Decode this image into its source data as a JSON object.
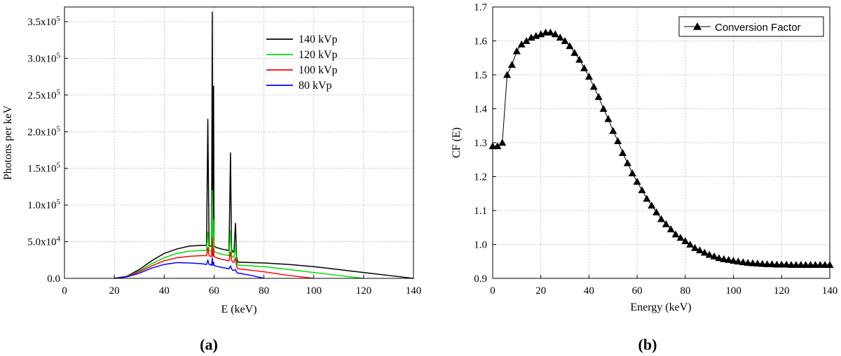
{
  "chart_data": [
    {
      "panel_label": "(a)",
      "type": "line",
      "xlabel": "E (keV)",
      "ylabel": "Photons per keV",
      "xlim": [
        0,
        140
      ],
      "ylim": [
        0,
        370000
      ],
      "x_ticks": [
        0,
        20,
        40,
        60,
        80,
        100,
        120,
        140
      ],
      "y_ticks": [
        {
          "value": 0,
          "mantissa": "0.0",
          "exp": ""
        },
        {
          "value": 50000,
          "mantissa": "5.0x10",
          "exp": "4"
        },
        {
          "value": 100000,
          "mantissa": "1.0x10",
          "exp": "5"
        },
        {
          "value": 150000,
          "mantissa": "1.5x10",
          "exp": "5"
        },
        {
          "value": 200000,
          "mantissa": "2.0x10",
          "exp": "5"
        },
        {
          "value": 250000,
          "mantissa": "2.5x10",
          "exp": "5"
        },
        {
          "value": 300000,
          "mantissa": "3.0x10",
          "exp": "5"
        },
        {
          "value": 350000,
          "mantissa": "3.5x10",
          "exp": "5"
        }
      ],
      "grid": true,
      "legend_position": "top-right",
      "series": [
        {
          "name": "140 kVp",
          "color": "#000000",
          "x": [
            20,
            25,
            30,
            35,
            40,
            45,
            50,
            55,
            57,
            57.5,
            58,
            58.5,
            59,
            59.3,
            59.5,
            59.8,
            60,
            60.5,
            61,
            63,
            66,
            66.6,
            67,
            67.5,
            68,
            68.6,
            69,
            69.5,
            70,
            80,
            90,
            100,
            110,
            120,
            130,
            140
          ],
          "y": [
            0,
            3000,
            12000,
            24000,
            34000,
            40000,
            44000,
            45000,
            45000,
            217000,
            45000,
            44000,
            44000,
            363000,
            44000,
            262000,
            44000,
            43000,
            42000,
            40000,
            38000,
            171000,
            40000,
            36000,
            36000,
            75000,
            30000,
            22000,
            22000,
            21000,
            19000,
            16000,
            12000,
            8000,
            4000,
            0
          ]
        },
        {
          "name": "120 kVp",
          "color": "#00dd00",
          "x": [
            20,
            25,
            30,
            35,
            40,
            45,
            50,
            55,
            57,
            57.5,
            58,
            58.5,
            59,
            59.3,
            59.5,
            59.8,
            60,
            60.5,
            61,
            63,
            66,
            66.6,
            67,
            67.5,
            68,
            68.6,
            69,
            69.5,
            70,
            80,
            90,
            100,
            110,
            120
          ],
          "y": [
            0,
            3000,
            10000,
            20000,
            28000,
            34000,
            37000,
            38000,
            38000,
            63000,
            38000,
            37000,
            37000,
            120000,
            37000,
            80000,
            37000,
            36000,
            35000,
            33000,
            31000,
            65000,
            32000,
            29000,
            29000,
            45000,
            24000,
            18000,
            18000,
            16000,
            12000,
            8000,
            4000,
            0
          ]
        },
        {
          "name": "100 kVp",
          "color": "#ff0000",
          "x": [
            20,
            25,
            30,
            35,
            40,
            45,
            50,
            55,
            57,
            57.5,
            58,
            58.5,
            59,
            59.3,
            59.5,
            59.8,
            60,
            60.5,
            61,
            63,
            66,
            66.6,
            67,
            67.5,
            68,
            68.6,
            69,
            69.5,
            70,
            80,
            90,
            100
          ],
          "y": [
            0,
            2500,
            9000,
            17000,
            24000,
            28000,
            30000,
            31000,
            31000,
            42000,
            31000,
            30000,
            30000,
            55000,
            30000,
            40000,
            30000,
            29000,
            28000,
            26000,
            24000,
            36000,
            25000,
            22000,
            22000,
            28000,
            17000,
            13000,
            13000,
            9000,
            4000,
            0
          ]
        },
        {
          "name": "80 kVp",
          "color": "#0000ff",
          "x": [
            20,
            25,
            30,
            35,
            40,
            45,
            50,
            55,
            57,
            57.5,
            58,
            58.5,
            59,
            59.3,
            59.5,
            59.8,
            60,
            60.5,
            61,
            63,
            66,
            66.6,
            67,
            67.5,
            68,
            68.6,
            69,
            69.5,
            70,
            75,
            80
          ],
          "y": [
            0,
            2000,
            7000,
            14000,
            19000,
            21500,
            21000,
            20000,
            19000,
            25000,
            19000,
            18500,
            18000,
            28000,
            18000,
            22000,
            17500,
            17000,
            16500,
            15000,
            13000,
            17000,
            13000,
            11000,
            11000,
            12000,
            9000,
            7000,
            7000,
            4000,
            0
          ]
        }
      ]
    },
    {
      "panel_label": "(b)",
      "type": "scatter",
      "xlabel": "Energy (keV)",
      "ylabel": "CF (E)",
      "xlim": [
        0,
        140
      ],
      "ylim": [
        0.9,
        1.7
      ],
      "x_ticks": [
        0,
        20,
        40,
        60,
        80,
        100,
        120,
        140
      ],
      "y_ticks": [
        "0.9",
        "1.0",
        "1.1",
        "1.2",
        "1.3",
        "1.4",
        "1.5",
        "1.6",
        "1.7"
      ],
      "grid": true,
      "legend_position": "top-right",
      "marker": "triangle",
      "series": [
        {
          "name": "Conversion Factor",
          "color": "#000000",
          "x": [
            0,
            2,
            4,
            6,
            8,
            10,
            12,
            14,
            16,
            18,
            20,
            22,
            24,
            26,
            28,
            30,
            32,
            34,
            36,
            38,
            40,
            42,
            44,
            46,
            48,
            50,
            52,
            54,
            56,
            58,
            60,
            62,
            64,
            66,
            68,
            70,
            72,
            74,
            76,
            78,
            80,
            82,
            84,
            86,
            88,
            90,
            92,
            94,
            96,
            98,
            100,
            102,
            104,
            106,
            108,
            110,
            112,
            114,
            116,
            118,
            120,
            122,
            124,
            126,
            128,
            130,
            132,
            134,
            136,
            138,
            140
          ],
          "y": [
            1.29,
            1.29,
            1.3,
            1.5,
            1.53,
            1.57,
            1.59,
            1.6,
            1.61,
            1.615,
            1.62,
            1.625,
            1.625,
            1.62,
            1.61,
            1.6,
            1.585,
            1.565,
            1.545,
            1.52,
            1.495,
            1.465,
            1.435,
            1.4,
            1.37,
            1.335,
            1.305,
            1.27,
            1.24,
            1.21,
            1.185,
            1.16,
            1.135,
            1.115,
            1.095,
            1.075,
            1.06,
            1.045,
            1.03,
            1.02,
            1.01,
            1.0,
            0.99,
            0.983,
            0.976,
            0.97,
            0.965,
            0.96,
            0.957,
            0.955,
            0.952,
            0.95,
            0.948,
            0.946,
            0.945,
            0.944,
            0.943,
            0.942,
            0.942,
            0.941,
            0.941,
            0.941,
            0.94,
            0.94,
            0.94,
            0.94,
            0.94,
            0.94,
            0.94,
            0.94,
            0.94
          ]
        }
      ]
    }
  ]
}
